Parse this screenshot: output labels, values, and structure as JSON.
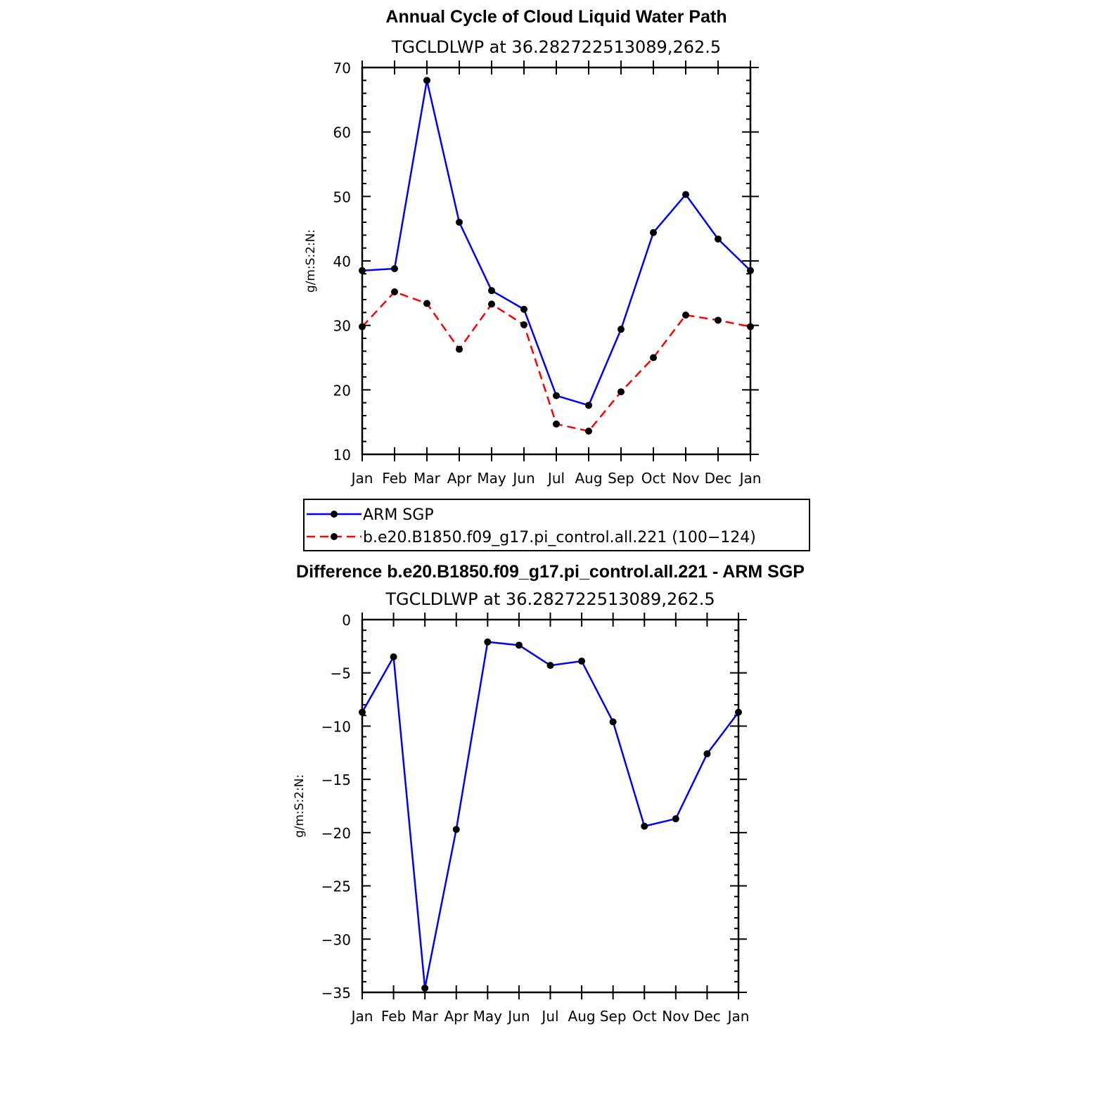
{
  "chart_data": [
    {
      "type": "line",
      "title": "Annual Cycle of Cloud Liquid Water Path",
      "subtitle": "TGCLDLWP at 36.282722513089,262.5",
      "ylabel": "g/m:S:2:N:",
      "xlabel": "",
      "ylim": [
        10,
        70
      ],
      "yticks": [
        10,
        20,
        30,
        40,
        50,
        60,
        70
      ],
      "categories": [
        "Jan",
        "Feb",
        "Mar",
        "Apr",
        "May",
        "Jun",
        "Jul",
        "Aug",
        "Sep",
        "Oct",
        "Nov",
        "Dec",
        "Jan"
      ],
      "series": [
        {
          "name": "ARM SGP",
          "color": "#0000ff",
          "dash": "solid",
          "values": [
            38.5,
            38.8,
            68.0,
            46.0,
            35.4,
            32.5,
            19.1,
            17.6,
            29.4,
            44.4,
            50.3,
            43.4,
            38.5
          ]
        },
        {
          "name": "b.e20.B1850.f09_g17.pi_control.all.221 (100−124)",
          "color": "#ff0000",
          "dash": "dashed",
          "values": [
            29.8,
            35.2,
            33.4,
            26.3,
            33.3,
            30.1,
            14.7,
            13.6,
            19.7,
            25.0,
            31.6,
            30.8,
            29.8
          ]
        }
      ]
    },
    {
      "type": "line",
      "title": "Difference b.e20.B1850.f09_g17.pi_control.all.221 - ARM SGP",
      "subtitle": "TGCLDLWP at 36.282722513089,262.5",
      "ylabel": "g/m:S:2:N:",
      "xlabel": "",
      "ylim": [
        -35,
        0
      ],
      "yticks": [
        -35,
        -30,
        -25,
        -20,
        -15,
        -10,
        -5,
        0
      ],
      "ytick_labels": [
        "−35",
        "−30",
        "−25",
        "−20",
        "−15",
        "−10",
        "−5",
        "0"
      ],
      "categories": [
        "Jan",
        "Feb",
        "Mar",
        "Apr",
        "May",
        "Jun",
        "Jul",
        "Aug",
        "Sep",
        "Oct",
        "Nov",
        "Dec",
        "Jan"
      ],
      "series": [
        {
          "name": "Difference",
          "color": "#0000ff",
          "dash": "solid",
          "values": [
            -8.7,
            -3.5,
            -34.6,
            -19.7,
            -2.1,
            -2.4,
            -4.3,
            -3.9,
            -9.6,
            -19.4,
            -18.7,
            -12.6,
            -8.7
          ]
        }
      ]
    }
  ]
}
